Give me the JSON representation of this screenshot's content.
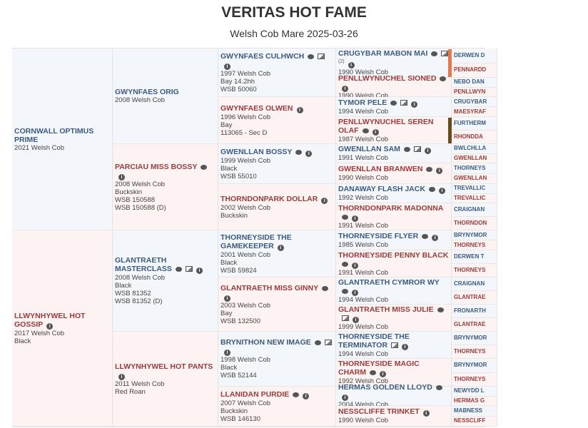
{
  "header": {
    "title": "VERITAS HOT FAME",
    "subtitle": "Welsh Cob Mare 2025-03-26"
  },
  "colors": {
    "sire": "#3d5a7e",
    "dam": "#9b3b3b",
    "sire_bg": "#f3f7fc",
    "dam_bg": "#fdf3f3",
    "marker_orange": "#e8784a",
    "marker_brown": "#6b4a1a"
  },
  "pedigree": {
    "gen1": [
      {
        "name": "CORNWALL OPTIMUS PRIME",
        "icons": [],
        "details": [
          "2021 Welsh Cob"
        ]
      },
      {
        "name": "LLWYNHYWEL HOT GOSSIP",
        "icons": [
          "info"
        ],
        "details": [
          "2017 Welsh Cob",
          "Black"
        ]
      }
    ],
    "gen2": [
      {
        "name": "GWYNFAES ORIG",
        "icons": [],
        "details": [
          "2008 Welsh Cob"
        ]
      },
      {
        "name": "PARCIAU MISS BOSSY",
        "icons": [
          "comment",
          "info"
        ],
        "details": [
          "2008 Welsh Cob",
          "Buckskin",
          "WSB 150588",
          "WSB 150588 (D)"
        ]
      },
      {
        "name": "GLANTRAETH MASTERCLASS",
        "icons": [
          "comment",
          "image",
          "info"
        ],
        "details": [
          "2008 Welsh Cob",
          "Black",
          "WSB 81352",
          "WSB 81352 (D)"
        ]
      },
      {
        "name": "LLWYNHYWEL HOT PANTS",
        "icons": [
          "info"
        ],
        "details": [
          "2011 Welsh Cob",
          "Red Roan"
        ]
      }
    ],
    "gen3": [
      {
        "name": "GWYNFAES CULHWCH",
        "icons": [
          "comment",
          "image",
          "info"
        ],
        "details": [
          "1997 Welsh Cob",
          "Bay 14.2hh",
          "WSB 50060"
        ]
      },
      {
        "name": "GWYNFAES OLWEN",
        "icons": [
          "info"
        ],
        "details": [
          "1996 Welsh Cob",
          "Bay",
          "113065 - Sec D"
        ]
      },
      {
        "name": "GWENLLAN BOSSY",
        "icons": [
          "comment",
          "info"
        ],
        "details": [
          "1999 Welsh Cob",
          "Black",
          "WSB 55010"
        ]
      },
      {
        "name": "THORNDONPARK DOLLAR",
        "icons": [
          "info"
        ],
        "details": [
          "2002 Welsh Cob",
          "Buckskin"
        ]
      },
      {
        "name": "THORNEYSIDE THE GAMEKEEPER",
        "icons": [
          "info"
        ],
        "details": [
          "2001 Welsh Cob",
          "Black",
          "WSB 59824"
        ]
      },
      {
        "name": "GLANTRAETH MISS GINNY",
        "icons": [
          "comment",
          "info"
        ],
        "details": [
          "2003 Welsh Cob",
          "Bay",
          "WSB 132500"
        ]
      },
      {
        "name": "BRYNITHON NEW IMAGE",
        "icons": [
          "comment",
          "image",
          "info"
        ],
        "details": [
          "1998 Welsh Cob",
          "Black",
          "WSB 52144"
        ]
      },
      {
        "name": "LLANIDAN PURDIE",
        "icons": [
          "comment",
          "info"
        ],
        "details": [
          "2007 Welsh Cob",
          "Buckskin",
          "WSB 146130"
        ]
      }
    ],
    "gen4": [
      {
        "name": "CRUGYBAR MABON MAI",
        "icons": [
          "comment",
          "image",
          "info"
        ],
        "image_count": "(2)",
        "details": [
          "1990 Welsh Cob"
        ],
        "marker": "orange"
      },
      {
        "name": "PENLLWYNUCHEL SIONED",
        "icons": [
          "comment",
          "info"
        ],
        "details": [
          "1990 Welsh Cob"
        ]
      },
      {
        "name": "TYMOR PELE",
        "icons": [
          "comment",
          "image",
          "info"
        ],
        "details": [
          "1994 Welsh Cob"
        ]
      },
      {
        "name": "PENLLWYNUCHEL SEREN OLAF",
        "icons": [
          "comment",
          "info"
        ],
        "details": [
          "1987 Welsh Cob"
        ],
        "marker": "brown"
      },
      {
        "name": "GWENLLAN SAM",
        "icons": [
          "comment",
          "image",
          "info"
        ],
        "details": [
          "1991 Welsh Cob"
        ]
      },
      {
        "name": "GWENLLAN BRANWEN",
        "icons": [
          "comment",
          "info"
        ],
        "details": [
          "1990 Welsh Cob"
        ]
      },
      {
        "name": "DANAWAY FLASH JACK",
        "icons": [
          "comment",
          "info"
        ],
        "details": [
          "1992 Welsh Cob"
        ]
      },
      {
        "name": "THORNDONPARK MADONNA",
        "icons": [
          "comment",
          "info"
        ],
        "details": [
          "1991 Welsh Cob"
        ]
      },
      {
        "name": "THORNEYSIDE FLYER",
        "icons": [
          "comment",
          "info"
        ],
        "details": [
          "1985 Welsh Cob"
        ]
      },
      {
        "name": "THORNEYSIDE PENNY BLACK",
        "icons": [
          "comment",
          "info"
        ],
        "details": [
          "1991 Welsh Cob"
        ]
      },
      {
        "name": "GLANTRAETH CYMROR WY",
        "icons": [
          "comment",
          "info"
        ],
        "details": [
          "1994 Welsh Cob"
        ]
      },
      {
        "name": "GLANTRAETH MISS JULIE",
        "icons": [
          "comment",
          "image",
          "info"
        ],
        "details": [
          "1999 Welsh Cob"
        ]
      },
      {
        "name": "THORNEYSIDE THE TERMINATOR",
        "icons": [
          "image",
          "info"
        ],
        "details": [
          "1994 Welsh Cob"
        ]
      },
      {
        "name": "THORNEYSIDE MAGIC CHARM",
        "icons": [
          "comment",
          "info"
        ],
        "details": [
          "1992 Welsh Cob"
        ]
      },
      {
        "name": "HERMAS GOLDEN LLOYD",
        "icons": [
          "comment",
          "info"
        ],
        "details": [
          "2004 Welsh Cob"
        ]
      },
      {
        "name": "NESSCLIFFE TRINKET",
        "icons": [
          "info"
        ],
        "details": [
          "1990 Welsh Cob"
        ]
      }
    ],
    "gen5": [
      {
        "name": "DERWEN D"
      },
      {
        "name": "PENNARDD"
      },
      {
        "name": "NEBO DAN"
      },
      {
        "name": "PENLLWYN"
      },
      {
        "name": "CRUGYBAR"
      },
      {
        "name": "MAESYRAF"
      },
      {
        "name": "FURTHERM"
      },
      {
        "name": "RHONDDA"
      },
      {
        "name": "BWLCHLLA"
      },
      {
        "name": "GWENLLAN"
      },
      {
        "name": "THORNEYS"
      },
      {
        "name": "GWENLLAN"
      },
      {
        "name": "TREVALLIC"
      },
      {
        "name": "TREVALLIC"
      },
      {
        "name": "CRAIGNAN"
      },
      {
        "name": "THORNDON"
      },
      {
        "name": "BRYNYMOR"
      },
      {
        "name": "THORNEYS"
      },
      {
        "name": "DERWEN T"
      },
      {
        "name": "THORNEYS"
      },
      {
        "name": "CRAIGNAN"
      },
      {
        "name": "GLANTRAE"
      },
      {
        "name": "FRONARTH"
      },
      {
        "name": "GLANTRAE"
      },
      {
        "name": "BRYNYMOR"
      },
      {
        "name": "THORNEYS"
      },
      {
        "name": "BRYNYMOR"
      },
      {
        "name": "THORNEYS"
      },
      {
        "name": "NEWYDD L"
      },
      {
        "name": "HERMAS G"
      },
      {
        "name": "MABNESS"
      },
      {
        "name": "NESSCLIFF"
      }
    ]
  }
}
